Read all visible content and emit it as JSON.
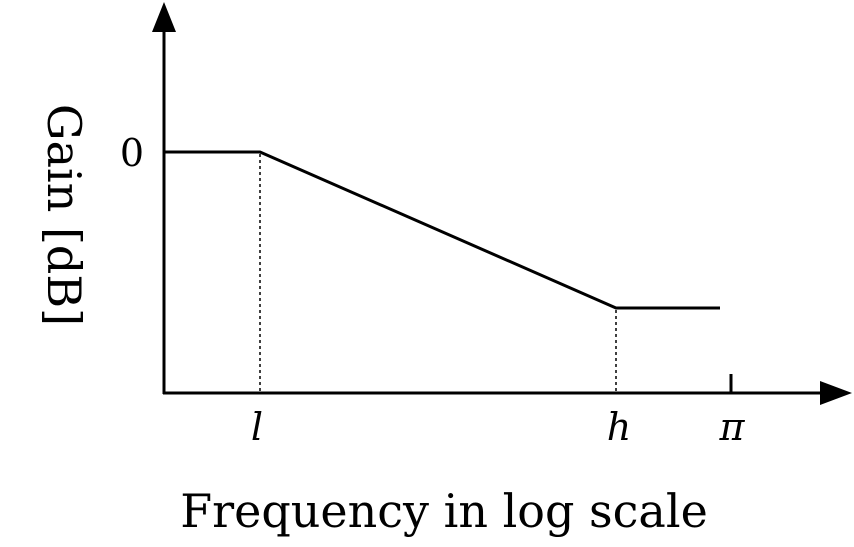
{
  "chart_data": {
    "type": "line",
    "xlabel": "Frequency in log scale",
    "ylabel": "Gain [dB]",
    "x_ticks": [
      "l",
      "h",
      "π"
    ],
    "y_ticks": [
      "0"
    ],
    "scale": "log",
    "series": [
      {
        "points": [
          {
            "x": "0",
            "y": "0"
          },
          {
            "x": "l",
            "y": "0"
          },
          {
            "x": "h",
            "y": "low"
          },
          {
            "x": "π",
            "y": "low"
          }
        ]
      }
    ],
    "markers": {
      "dotted_verticals_at": [
        "l",
        "h"
      ],
      "tick_at": [
        "π"
      ]
    },
    "grid": false,
    "legend": "none"
  }
}
